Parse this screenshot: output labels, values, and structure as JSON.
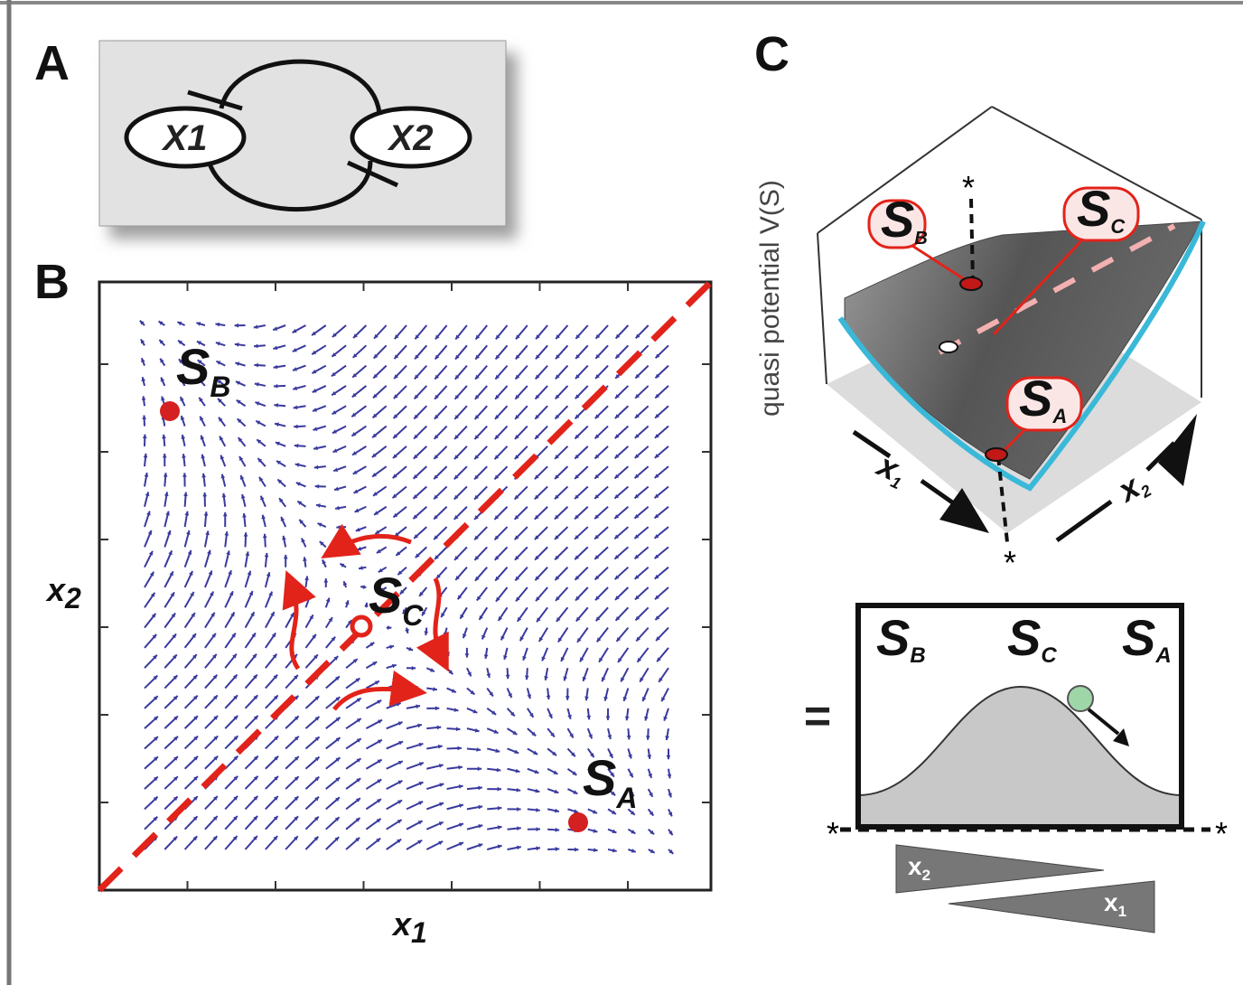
{
  "panels": {
    "A": {
      "label": "A",
      "nodes": [
        "X1",
        "X2"
      ]
    },
    "B": {
      "label": "B",
      "states": [
        {
          "name": "S",
          "sub": "B"
        },
        {
          "name": "S",
          "sub": "C"
        },
        {
          "name": "S",
          "sub": "A"
        }
      ],
      "x_label": {
        "name": "x",
        "sub": "1"
      },
      "y_label": {
        "name": "x",
        "sub": "2"
      }
    },
    "C": {
      "label": "C",
      "y_label": "quasi potential V(S)",
      "states": [
        {
          "name": "S",
          "sub": "B"
        },
        {
          "name": "S",
          "sub": "C"
        },
        {
          "name": "S",
          "sub": "A"
        }
      ],
      "axes": [
        {
          "name": "x",
          "sub": "1"
        },
        {
          "name": "x",
          "sub": "2"
        }
      ],
      "star": "*",
      "equals": "=",
      "profile_states": [
        {
          "name": "S",
          "sub": "B"
        },
        {
          "name": "S",
          "sub": "C"
        },
        {
          "name": "S",
          "sub": "A"
        }
      ],
      "gradients": [
        {
          "name": "x",
          "sub": "2"
        },
        {
          "name": "x",
          "sub": "1"
        }
      ]
    }
  }
}
